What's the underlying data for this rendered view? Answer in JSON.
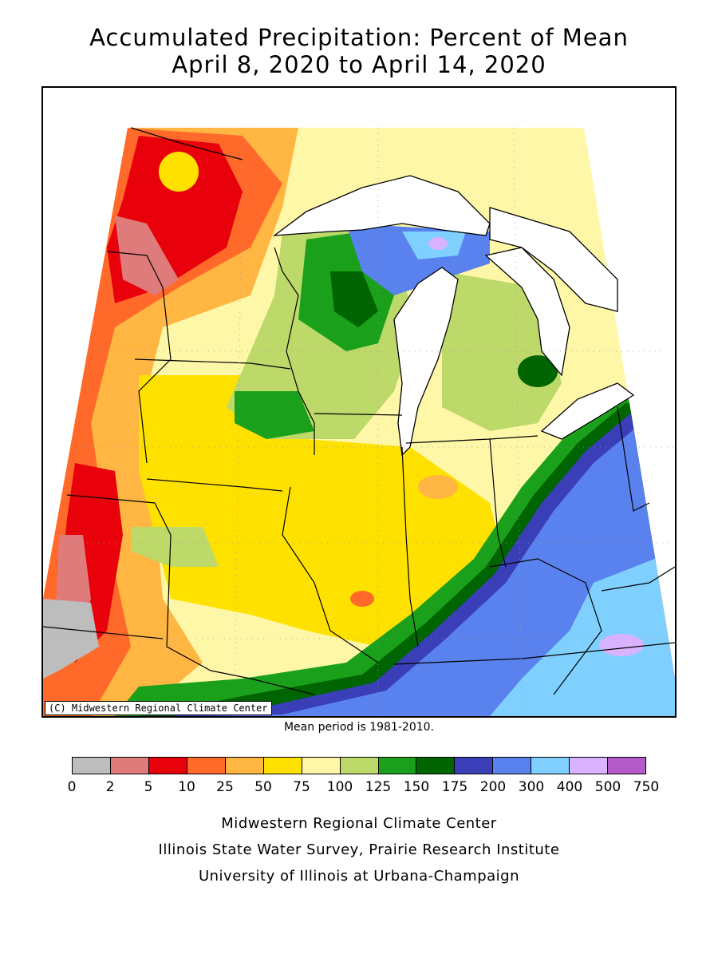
{
  "title": {
    "line1": "Accumulated Precipitation: Percent of Mean",
    "line2": "April 8, 2020 to April 14, 2020"
  },
  "map": {
    "copyright": "(C) Midwestern Regional Climate Center",
    "mean_note": "Mean period is 1981-2010."
  },
  "legend": {
    "colors": [
      "#bdbdbd",
      "#e07b7b",
      "#e8000b",
      "#ff6a2a",
      "#ffb642",
      "#ffe100",
      "#fff7a8",
      "#bcd96a",
      "#1aa01a",
      "#006400",
      "#3a3fb8",
      "#5a82ee",
      "#7fd0ff",
      "#d9b3ff",
      "#b35ac8"
    ],
    "labels": [
      "0",
      "2",
      "5",
      "10",
      "25",
      "50",
      "75",
      "100",
      "125",
      "150",
      "175",
      "200",
      "300",
      "400",
      "500",
      "750"
    ]
  },
  "credits": {
    "line1": "Midwestern Regional Climate Center",
    "line2": "Illinois State Water Survey, Prairie Research Institute",
    "line3": "University of Illinois at Urbana-Champaign"
  }
}
